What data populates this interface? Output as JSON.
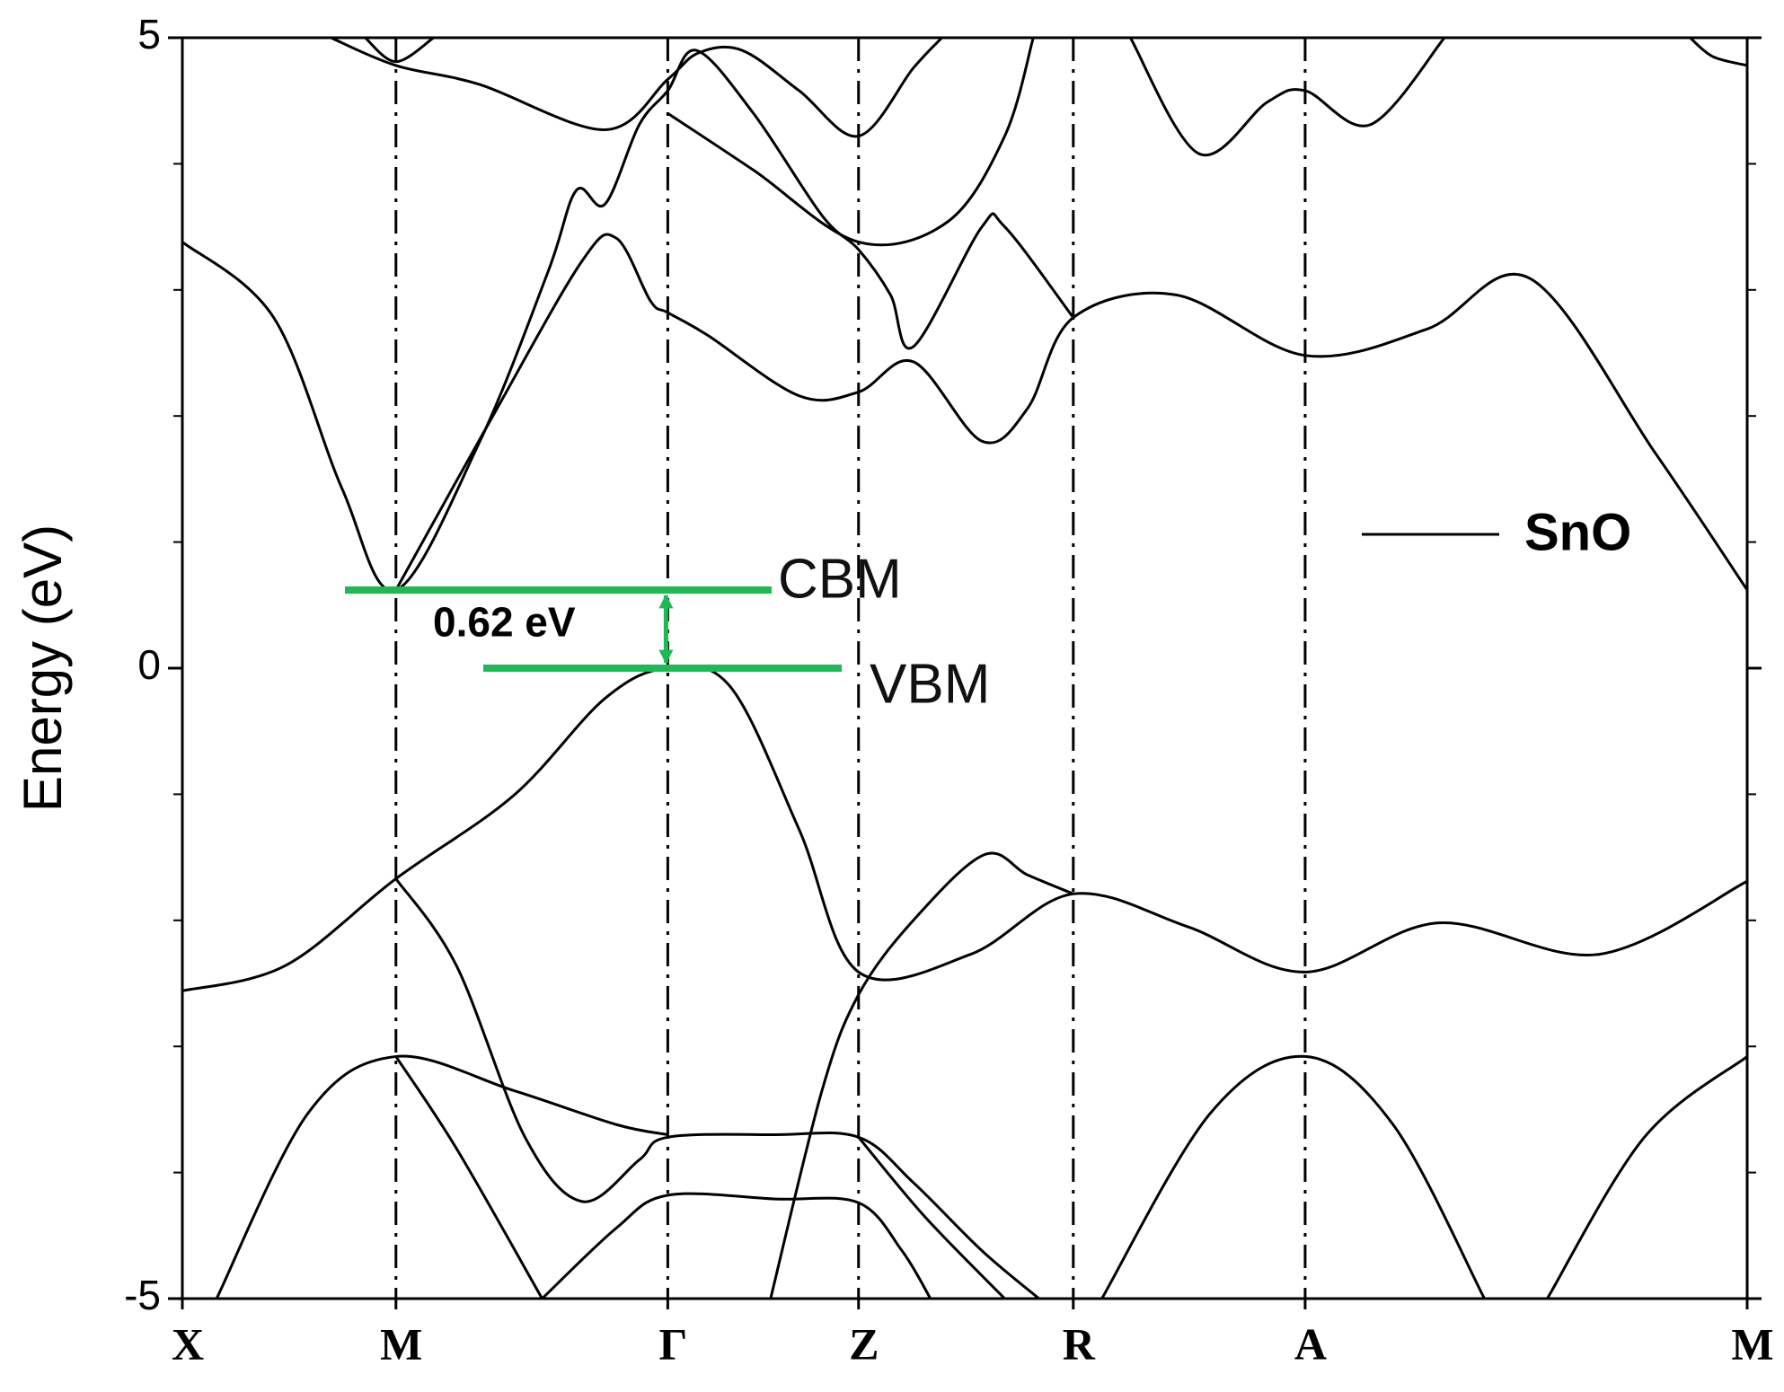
{
  "chart_data": {
    "type": "band-structure",
    "ylabel": "Energy (eV)",
    "ylim": [
      -5,
      5
    ],
    "yticks": [
      -5,
      0,
      5
    ],
    "yminorticks": [
      -4,
      -3,
      -2,
      -1,
      1,
      2,
      3,
      4
    ],
    "xlim": [
      0,
      13.7
    ],
    "xticks": [
      {
        "value": 0,
        "label": "X"
      },
      {
        "value": 1.87,
        "label": "M"
      },
      {
        "value": 4.25,
        "label": "Γ"
      },
      {
        "value": 5.92,
        "label": "Z"
      },
      {
        "value": 7.8,
        "label": "R"
      },
      {
        "value": 9.83,
        "label": "A"
      },
      {
        "value": 13.7,
        "label": "M"
      }
    ],
    "color": "#000000",
    "legend": "SnO",
    "gap": {
      "label": "0.62 eV",
      "cbm": 0.62,
      "vbm": 0,
      "cbm_label": "CBM",
      "vbm_label": "VBM",
      "color": "#1db954"
    },
    "bands": [
      {
        "x": [
          0,
          0.8,
          1.4,
          1.87,
          2.6,
          3.2,
          3.45,
          3.7,
          4.0,
          4.25,
          4.5,
          5.0,
          5.6,
          5.92,
          6.2,
          6.4,
          7.0,
          7.2,
          7.8
        ],
        "values": [
          3.38,
          2.78,
          1.42,
          0.62,
          1.79,
          3.14,
          3.79,
          3.68,
          4.31,
          4.58,
          4.9,
          4.4,
          3.59,
          3.32,
          2.96,
          2.55,
          3.5,
          3.5,
          2.78
        ]
      },
      {
        "x": [
          1.87,
          2.7,
          3.5,
          3.8,
          4.1,
          4.25,
          4.6,
          5.4,
          5.92,
          6.4,
          7.0,
          7.4,
          7.8,
          8.7,
          9.83,
          10.9,
          11.8,
          12.9,
          13.7
        ],
        "values": [
          0.62,
          1.97,
          3.23,
          3.41,
          2.91,
          2.82,
          2.64,
          2.16,
          2.19,
          2.43,
          1.8,
          2.06,
          2.78,
          2.96,
          2.48,
          2.69,
          3.09,
          1.7,
          0.62
        ]
      },
      {
        "x": [
          4.25,
          5.0,
          5.92,
          6.7,
          7.2,
          7.45
        ],
        "values": [
          4.4,
          3.95,
          3.38,
          3.54,
          4.22,
          5.0
        ]
      },
      {
        "x": [
          1.3,
          1.87,
          2.6,
          3.7,
          4.25,
          4.52,
          4.9,
          5.4,
          5.92,
          6.4,
          6.65
        ],
        "values": [
          5.0,
          4.78,
          4.63,
          4.27,
          4.67,
          4.88,
          4.9,
          4.58,
          4.22,
          4.76,
          5.0
        ]
      },
      {
        "x": [
          1.6,
          1.87,
          2.2
        ],
        "values": [
          5.0,
          4.81,
          5.0
        ]
      },
      {
        "x": [
          8.3,
          8.9,
          9.5,
          9.83,
          10.4,
          11.05
        ],
        "values": [
          5.0,
          4.08,
          4.49,
          4.58,
          4.31,
          5.0
        ]
      },
      {
        "x": [
          13.2,
          13.4,
          13.7
        ],
        "values": [
          5.0,
          4.85,
          4.78
        ]
      },
      {
        "x": [
          0,
          0.9,
          1.87,
          2.9,
          3.7,
          4.25,
          4.8,
          5.4,
          5.92,
          6.9,
          7.8,
          8.8,
          9.83,
          11.0,
          12.4,
          13.7
        ],
        "values": [
          -2.56,
          -2.36,
          -1.67,
          -1.01,
          -0.24,
          0,
          -0.15,
          -1.28,
          -2.41,
          -2.27,
          -1.79,
          -2.05,
          -2.41,
          -2.02,
          -2.27,
          -1.69
        ]
      },
      {
        "x": [
          1.87,
          2.4,
          3.0,
          3.5,
          4.0,
          4.25,
          5.2,
          5.92,
          6.4,
          7.0,
          7.5
        ],
        "values": [
          -1.67,
          -2.36,
          -3.72,
          -4.23,
          -3.9,
          -3.72,
          -3.7,
          -3.72,
          -4.08,
          -4.62,
          -5.0
        ]
      },
      {
        "x": [
          0.3,
          1.1,
          1.87,
          2.9,
          3.8,
          4.25
        ],
        "values": [
          -5.0,
          -3.53,
          -3.08,
          -3.35,
          -3.62,
          -3.7
        ]
      },
      {
        "x": [
          1.87,
          2.4,
          3.15
        ],
        "values": [
          -3.08,
          -3.81,
          -5.0
        ]
      },
      {
        "x": [
          3.15,
          3.8,
          4.25,
          5.2,
          5.92,
          6.3,
          6.55
        ],
        "values": [
          -5.0,
          -4.44,
          -4.18,
          -4.21,
          -4.24,
          -4.62,
          -5.0
        ]
      },
      {
        "x": [
          5.15,
          5.6,
          5.92,
          6.4,
          7.02,
          7.4,
          7.8
        ],
        "values": [
          -5.0,
          -3.35,
          -2.59,
          -2.0,
          -1.48,
          -1.64,
          -1.79
        ]
      },
      {
        "x": [
          5.92,
          6.5,
          7.2
        ],
        "values": [
          -3.72,
          -4.35,
          -5.0
        ]
      },
      {
        "x": [
          8.05,
          9.0,
          9.83,
          10.6,
          11.4
        ],
        "values": [
          -5.0,
          -3.53,
          -3.08,
          -3.62,
          -5.0
        ]
      },
      {
        "x": [
          11.95,
          12.8,
          13.7
        ],
        "values": [
          -5.0,
          -3.72,
          -3.08
        ]
      }
    ]
  }
}
